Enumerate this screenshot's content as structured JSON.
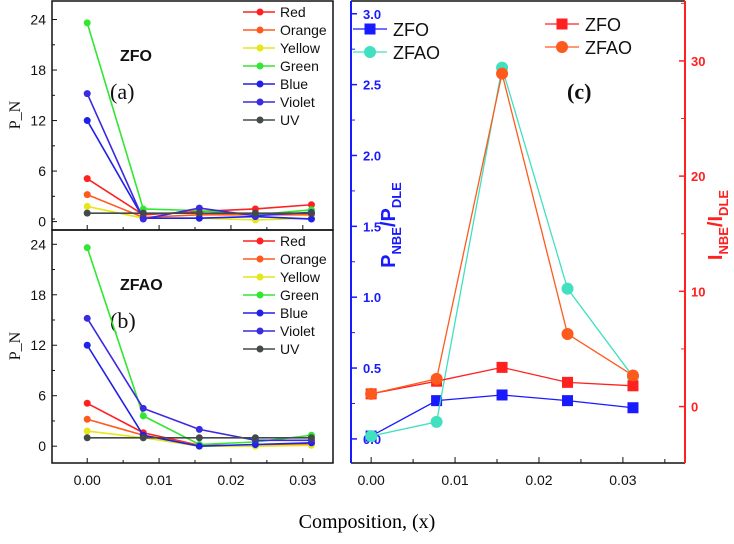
{
  "xlabel": "Composition, (x)",
  "chart_data": [
    {
      "type": "line",
      "panel_label": "(a)",
      "sample_label": "ZFO",
      "ylabel": "P_N",
      "x": [
        0,
        0.0078,
        0.0156,
        0.0234,
        0.0312
      ],
      "xlim": [
        -0.0049,
        0.0342
      ],
      "ylim": [
        -1,
        26.2
      ],
      "yticks": [
        0,
        6,
        12,
        18,
        24
      ],
      "xticks": [],
      "legend_position": "top-right",
      "series": [
        {
          "name": "Red",
          "color": "#ff2020",
          "values": [
            5.1,
            0.8,
            1.2,
            1.5,
            2.0
          ]
        },
        {
          "name": "Orange",
          "color": "#ff5a1e",
          "values": [
            3.2,
            0.5,
            0.8,
            0.8,
            0.8
          ]
        },
        {
          "name": "Yellow",
          "color": "#e6e619",
          "values": [
            1.8,
            0.4,
            0.4,
            0.2,
            0.4
          ]
        },
        {
          "name": "Green",
          "color": "#33e633",
          "values": [
            23.6,
            1.5,
            1.3,
            0.8,
            1.4
          ]
        },
        {
          "name": "Blue",
          "color": "#2020e6",
          "values": [
            12.0,
            0.4,
            0.4,
            0.6,
            0.3
          ]
        },
        {
          "name": "Violet",
          "color": "#3a2ae0",
          "values": [
            15.2,
            0.3,
            1.6,
            0.7,
            1.1
          ]
        },
        {
          "name": "UV",
          "color": "#444a4a",
          "values": [
            1.0,
            1.0,
            1.0,
            1.0,
            1.0
          ]
        }
      ]
    },
    {
      "type": "line",
      "panel_label": "(b)",
      "sample_label": "ZFAO",
      "ylabel": "P_N",
      "x": [
        0,
        0.0078,
        0.0156,
        0.0234,
        0.0312
      ],
      "xlim": [
        -0.0049,
        0.0342
      ],
      "ylim": [
        -2,
        25.7
      ],
      "yticks": [
        0,
        6,
        12,
        18,
        24
      ],
      "xticks": [
        "0.00",
        "0.01",
        "0.02",
        "0.03"
      ],
      "legend_position": "top-right",
      "series": [
        {
          "name": "Red",
          "color": "#ff2020",
          "values": [
            5.1,
            1.6,
            0.1,
            0.1,
            0.3
          ]
        },
        {
          "name": "Orange",
          "color": "#ff5a1e",
          "values": [
            3.2,
            1.3,
            0.1,
            0.1,
            0.2
          ]
        },
        {
          "name": "Yellow",
          "color": "#e6e619",
          "values": [
            1.8,
            1.0,
            0.0,
            0.0,
            0.1
          ]
        },
        {
          "name": "Green",
          "color": "#33e633",
          "values": [
            23.6,
            3.6,
            0.2,
            0.5,
            1.3
          ]
        },
        {
          "name": "Blue",
          "color": "#2020e6",
          "values": [
            12.0,
            1.3,
            0.0,
            0.2,
            0.4
          ]
        },
        {
          "name": "Violet",
          "color": "#3a2ae0",
          "values": [
            15.2,
            4.5,
            2.0,
            0.7,
            0.7
          ]
        },
        {
          "name": "UV",
          "color": "#444a4a",
          "values": [
            1.0,
            1.0,
            1.0,
            1.0,
            1.0
          ]
        }
      ]
    },
    {
      "type": "line",
      "panel_label": "(c)",
      "x": [
        0,
        0.0078,
        0.0156,
        0.0234,
        0.0312
      ],
      "xlim": [
        -0.0024,
        0.0374
      ],
      "xticks": [
        "0.00",
        "0.01",
        "0.02",
        "0.03"
      ],
      "left_axis": {
        "label_main": "P",
        "label_sub1": "NBE",
        "label_sub2": "DLE",
        "color": "#1a1aff",
        "ylim": [
          -0.17,
          3.09
        ],
        "yticks": [
          "0.0",
          "0.5",
          "1.0",
          "1.5",
          "2.0",
          "2.5",
          "3.0"
        ]
      },
      "right_axis": {
        "label_main": "I",
        "label_sub1": "NBE",
        "label_sub2": "DLE",
        "color": "#ff2020",
        "ylim": [
          -4.9,
          35.2
        ],
        "yticks": [
          "0",
          "10",
          "20",
          "30"
        ]
      },
      "series": [
        {
          "name": "ZFO",
          "axis": "left",
          "marker": "square",
          "color": "#1a1aff",
          "values": [
            0.02,
            0.27,
            0.31,
            0.27,
            0.22
          ]
        },
        {
          "name": "ZFAO",
          "axis": "left",
          "marker": "circle",
          "color": "#40e0c0",
          "values": [
            0.02,
            0.12,
            2.62,
            1.06,
            0.44
          ]
        },
        {
          "name": "ZFO",
          "axis": "right",
          "marker": "square",
          "color": "#ff2020",
          "values": [
            1.1,
            2.2,
            3.4,
            2.1,
            1.8
          ]
        },
        {
          "name": "ZFAO",
          "axis": "right",
          "marker": "circle",
          "color": "#ff5a1e",
          "values": [
            1.1,
            2.4,
            28.9,
            6.3,
            2.7
          ]
        }
      ]
    }
  ]
}
